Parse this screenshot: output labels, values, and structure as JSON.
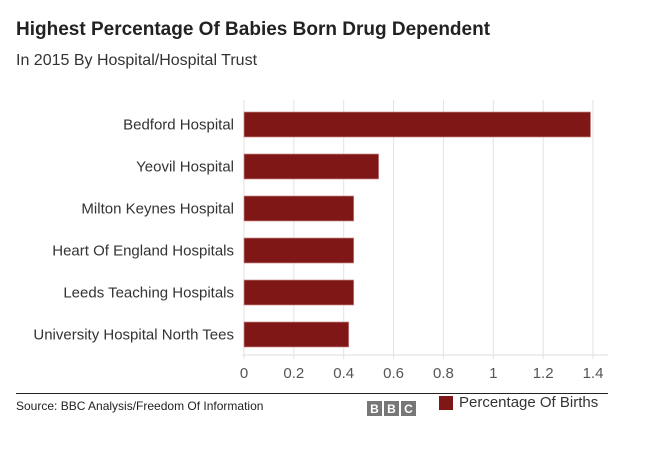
{
  "chart_data": {
    "type": "bar",
    "orientation": "horizontal",
    "title": "Highest Percentage Of Babies Born Drug Dependent",
    "subtitle": "In 2015 By Hospital/Hospital Trust",
    "categories": [
      "Bedford Hospital",
      "Yeovil Hospital",
      "Milton Keynes Hospital",
      "Heart Of England Hospitals",
      "Leeds Teaching Hospitals",
      "University Hospital North Tees"
    ],
    "series": [
      {
        "name": "Percentage Of Births",
        "values": [
          1.39,
          0.54,
          0.44,
          0.44,
          0.44,
          0.42
        ],
        "color": "#7f1716"
      }
    ],
    "xlim": [
      0,
      1.4
    ],
    "xticks": [
      "0",
      "0.2",
      "0.4",
      "0.6",
      "0.8",
      "1",
      "1.2",
      "1.4"
    ],
    "grid": true,
    "legend": "bottom-right"
  },
  "footer": {
    "source": "Source: BBC Analysis/Freedom Of Information",
    "logo": "BBC"
  }
}
